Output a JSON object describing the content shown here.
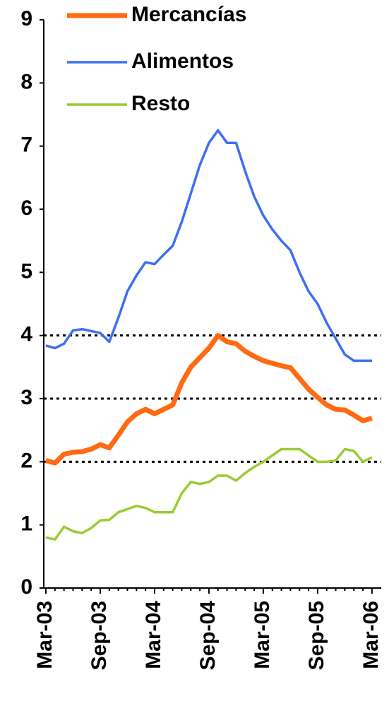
{
  "chart_data": {
    "type": "line",
    "categories": [
      "Mar-03",
      null,
      null,
      null,
      null,
      null,
      "Sep-03",
      null,
      null,
      null,
      null,
      null,
      "Mar-04",
      null,
      null,
      null,
      null,
      null,
      "Sep-04",
      null,
      null,
      null,
      null,
      null,
      "Mar-05",
      null,
      null,
      null,
      null,
      null,
      "Sep-05",
      null,
      null,
      null,
      null,
      null,
      "Mar-06"
    ],
    "series": [
      {
        "name": "Mercancías",
        "color": "#ff6a13",
        "width": 7,
        "values": [
          2.02,
          1.98,
          2.12,
          2.15,
          2.16,
          2.2,
          2.27,
          2.22,
          2.42,
          2.63,
          2.76,
          2.83,
          2.76,
          2.83,
          2.9,
          3.25,
          3.5,
          3.65,
          3.8,
          4.0,
          3.9,
          3.87,
          3.75,
          3.67,
          3.6,
          3.56,
          3.52,
          3.49,
          3.32,
          3.15,
          3.02,
          2.9,
          2.83,
          2.82,
          2.74,
          2.65,
          2.69
        ]
      },
      {
        "name": "Alimentos",
        "color": "#3d6ff0",
        "width": 3.5,
        "values": [
          3.84,
          3.8,
          3.87,
          4.08,
          4.1,
          4.07,
          4.04,
          3.9,
          4.28,
          4.7,
          4.95,
          5.16,
          5.13,
          5.28,
          5.42,
          5.8,
          6.25,
          6.7,
          7.05,
          7.25,
          7.05,
          7.05,
          6.6,
          6.2,
          5.9,
          5.68,
          5.5,
          5.35,
          5.0,
          4.7,
          4.5,
          4.2,
          3.95,
          3.7,
          3.6,
          3.6,
          3.6
        ]
      },
      {
        "name": "Resto",
        "color": "#99cc33",
        "width": 3.5,
        "values": [
          0.8,
          0.77,
          0.97,
          0.9,
          0.87,
          0.95,
          1.07,
          1.08,
          1.2,
          1.25,
          1.3,
          1.27,
          1.2,
          1.2,
          1.2,
          1.5,
          1.68,
          1.65,
          1.68,
          1.78,
          1.78,
          1.7,
          1.82,
          1.92,
          2.0,
          2.1,
          2.2,
          2.2,
          2.2,
          2.1,
          2.0,
          2.0,
          2.02,
          2.2,
          2.17,
          2.0,
          2.07
        ]
      }
    ],
    "ylim": [
      0,
      9
    ],
    "yticks": [
      0,
      1,
      2,
      3,
      4,
      5,
      6,
      7,
      8,
      9
    ],
    "hlines": [
      2,
      3,
      4
    ]
  }
}
